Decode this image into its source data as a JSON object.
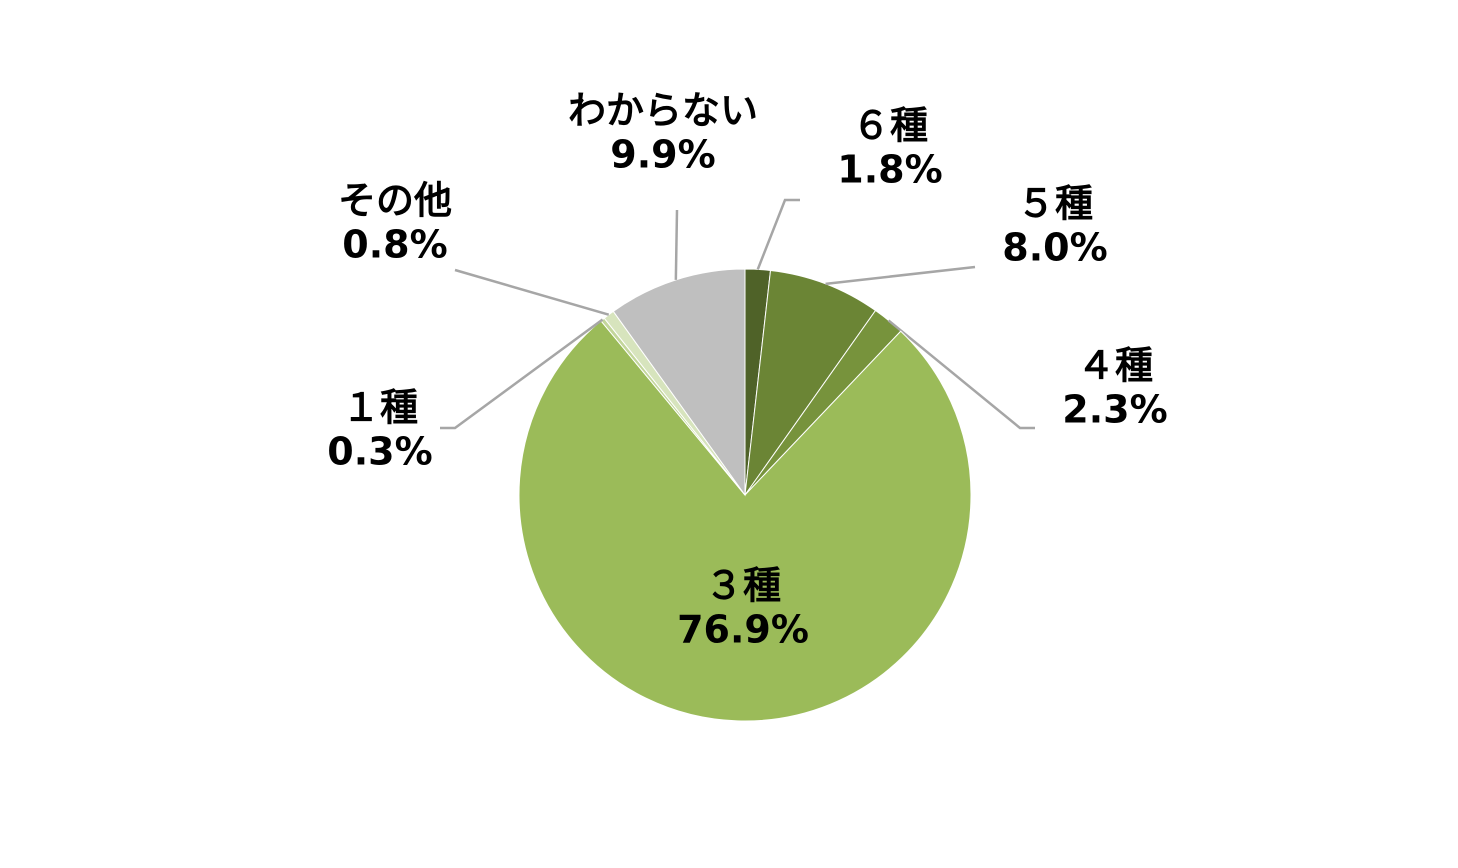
{
  "chart_data": {
    "type": "pie",
    "categories": [
      "６種",
      "５種",
      "４種",
      "３種",
      "１種",
      "その他",
      "わからない"
    ],
    "values": [
      1.8,
      8.0,
      2.3,
      76.9,
      0.3,
      0.8,
      9.9
    ],
    "value_labels": [
      "1.8%",
      "8.0%",
      "2.3%",
      "76.9%",
      "0.3%",
      "0.8%",
      "9.9%"
    ],
    "colors": [
      "#4f6228",
      "#6b8535",
      "#77933c",
      "#9bbb59",
      "#c3d69b",
      "#d7e4bd",
      "#bfbfbf"
    ]
  }
}
